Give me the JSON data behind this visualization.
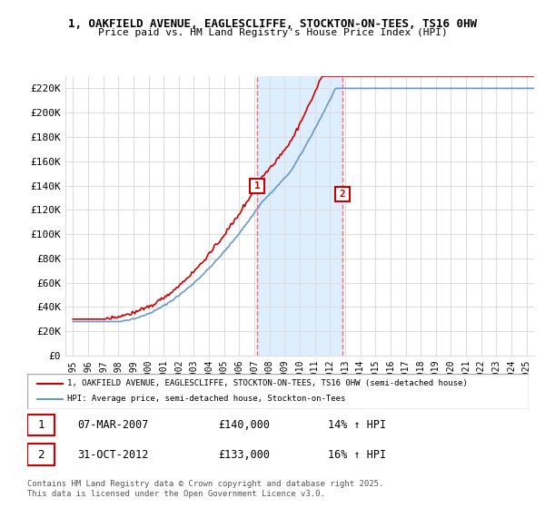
{
  "title1": "1, OAKFIELD AVENUE, EAGLESCLIFFE, STOCKTON-ON-TEES, TS16 0HW",
  "title2": "Price paid vs. HM Land Registry's House Price Index (HPI)",
  "ylabel_ticks": [
    "£0",
    "£20K",
    "£40K",
    "£60K",
    "£80K",
    "£100K",
    "£120K",
    "£140K",
    "£160K",
    "£180K",
    "£200K",
    "£220K"
  ],
  "ytick_vals": [
    0,
    20000,
    40000,
    60000,
    80000,
    100000,
    120000,
    140000,
    160000,
    180000,
    200000,
    220000
  ],
  "ylim": [
    0,
    230000
  ],
  "xlim_start": 1994.5,
  "xlim_end": 2025.5,
  "purchase1_x": 2007.18,
  "purchase1_y": 140000,
  "purchase1_label": "1",
  "purchase2_x": 2012.83,
  "purchase2_y": 133000,
  "purchase2_label": "2",
  "vline1_x": 2007.18,
  "vline2_x": 2012.83,
  "shade_start": 2007.18,
  "shade_end": 2012.83,
  "line1_color": "#cc0000",
  "line2_color": "#6699cc",
  "vline_color": "#ff6666",
  "shade_color": "#ddeeff",
  "grid_color": "#dddddd",
  "bg_color": "#ffffff",
  "legend1_label": "1, OAKFIELD AVENUE, EAGLESCLIFFE, STOCKTON-ON-TEES, TS16 0HW (semi-detached house)",
  "legend2_label": "HPI: Average price, semi-detached house, Stockton-on-Tees",
  "transaction1_date": "07-MAR-2007",
  "transaction1_price": "£140,000",
  "transaction1_hpi": "14% ↑ HPI",
  "transaction2_date": "31-OCT-2012",
  "transaction2_price": "£133,000",
  "transaction2_hpi": "16% ↑ HPI",
  "footer": "Contains HM Land Registry data © Crown copyright and database right 2025.\nThis data is licensed under the Open Government Licence v3.0.",
  "xtick_years": [
    1995,
    1996,
    1997,
    1998,
    1999,
    2000,
    2001,
    2002,
    2003,
    2004,
    2005,
    2006,
    2007,
    2008,
    2009,
    2010,
    2011,
    2012,
    2013,
    2014,
    2015,
    2016,
    2017,
    2018,
    2019,
    2020,
    2021,
    2022,
    2023,
    2024,
    2025
  ]
}
